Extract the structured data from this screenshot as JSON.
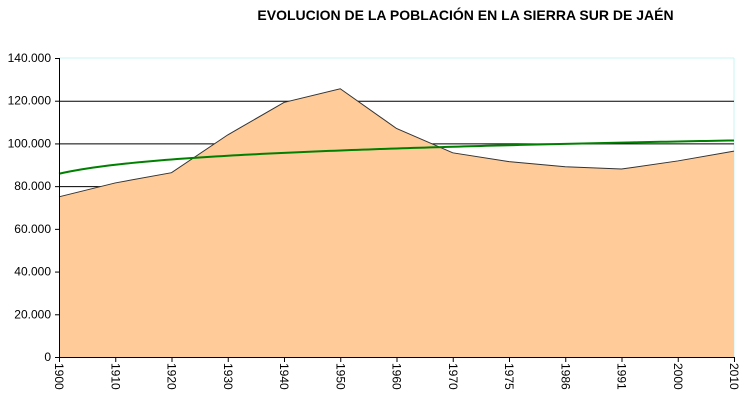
{
  "chart_data": {
    "type": "area",
    "title": "EVOLUCION DE LA POBLACIÓN EN LA SIERRA SUR DE JAÉN",
    "xlabel": "",
    "ylabel": "",
    "categories": [
      "1900",
      "1910",
      "1920",
      "1930",
      "1940",
      "1950",
      "1960",
      "1970",
      "1975",
      "1986",
      "1991",
      "2000",
      "2010"
    ],
    "series": [
      {
        "values": [
          75000,
          81500,
          86300,
          104000,
          119200,
          125600,
          107000,
          95600,
          91500,
          89100,
          88000,
          91800,
          96400
        ],
        "color": "#FFCC99",
        "line_color": "#333333"
      }
    ],
    "trendline": {
      "type": "logarithmic",
      "color": "#008000",
      "values": [
        85800,
        90000,
        92500,
        94200,
        95600,
        96700,
        97600,
        98400,
        99200,
        99800,
        100400,
        100900,
        101400
      ]
    },
    "ylim": [
      0,
      140000
    ],
    "yticks": [
      0,
      20000,
      40000,
      60000,
      80000,
      100000,
      120000,
      140000
    ],
    "ytick_labels": [
      "0",
      "20.000",
      "40.000",
      "60.000",
      "80.000",
      "100.000",
      "120.000",
      "140.000"
    ],
    "grid": true,
    "gridline_color": "#000000",
    "legend": "none"
  }
}
